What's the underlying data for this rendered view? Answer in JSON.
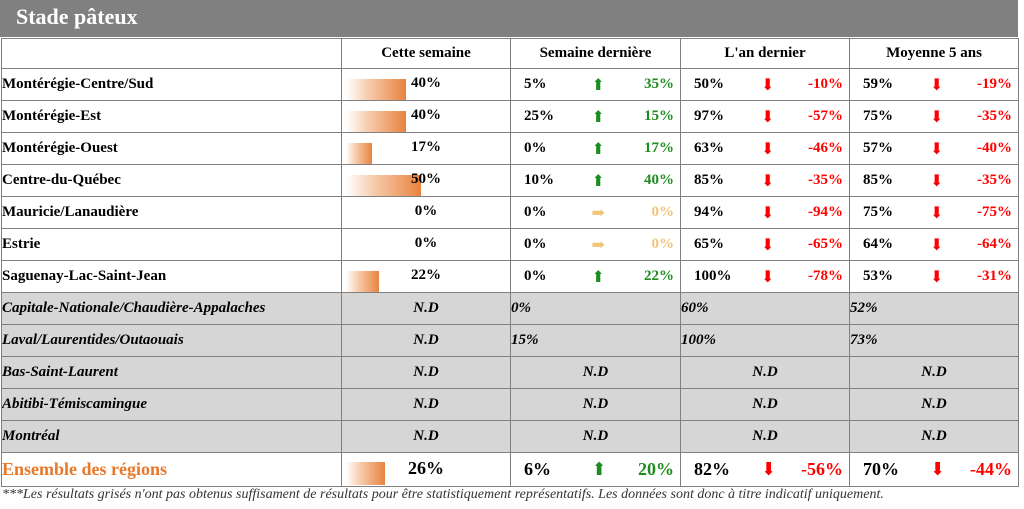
{
  "title": "Stade pâteux",
  "headers": [
    "Cette semaine",
    "Semaine dernière",
    "L'an dernier",
    "Moyenne 5 ans"
  ],
  "colors": {
    "up": "#1e8c1e",
    "down": "#ff0000",
    "flat": "#f2c47a",
    "total": "#e8782a",
    "grey_row": "#d6d6d6"
  },
  "rows": [
    {
      "region": "Montérégie-Centre/Sud",
      "cw": "40%",
      "cw_fill": 0.4,
      "lw": "5%",
      "lw_arrow": "up-arrow",
      "lw_change": "35%",
      "ly": "50%",
      "ly_arrow": "down-arrow",
      "ly_change": "-10%",
      "avg": "59%",
      "avg_arrow": "down-arrow",
      "avg_change": "-19%"
    },
    {
      "region": "Montérégie-Est",
      "cw": "40%",
      "cw_fill": 0.4,
      "lw": "25%",
      "lw_arrow": "up-arrow",
      "lw_change": "15%",
      "ly": "97%",
      "ly_arrow": "down-arrow",
      "ly_change": "-57%",
      "avg": "75%",
      "avg_arrow": "down-arrow",
      "avg_change": "-35%"
    },
    {
      "region": "Montérégie-Ouest",
      "cw": "17%",
      "cw_fill": 0.17,
      "lw": "0%",
      "lw_arrow": "up-arrow",
      "lw_change": "17%",
      "ly": "63%",
      "ly_arrow": "down-arrow",
      "ly_change": "-46%",
      "avg": "57%",
      "avg_arrow": "down-arrow",
      "avg_change": "-40%"
    },
    {
      "region": "Centre-du-Québec",
      "cw": "50%",
      "cw_fill": 0.5,
      "lw": "10%",
      "lw_arrow": "up-arrow",
      "lw_change": "40%",
      "ly": "85%",
      "ly_arrow": "down-arrow",
      "ly_change": "-35%",
      "avg": "85%",
      "avg_arrow": "down-arrow",
      "avg_change": "-35%"
    },
    {
      "region": "Mauricie/Lanaudière",
      "cw": "0%",
      "cw_fill": 0,
      "lw": "0%",
      "lw_arrow": "flat-arrow",
      "lw_change": "0%",
      "ly": "94%",
      "ly_arrow": "down-arrow",
      "ly_change": "-94%",
      "avg": "75%",
      "avg_arrow": "down-arrow",
      "avg_change": "-75%"
    },
    {
      "region": "Estrie",
      "cw": "0%",
      "cw_fill": 0,
      "lw": "0%",
      "lw_arrow": "flat-arrow",
      "lw_change": "0%",
      "ly": "65%",
      "ly_arrow": "down-arrow",
      "ly_change": "-65%",
      "avg": "64%",
      "avg_arrow": "down-arrow",
      "avg_change": "-64%"
    },
    {
      "region": "Saguenay-Lac-Saint-Jean",
      "cw": "22%",
      "cw_fill": 0.22,
      "lw": "0%",
      "lw_arrow": "up-arrow",
      "lw_change": "22%",
      "ly": "100%",
      "ly_arrow": "down-arrow",
      "ly_change": "-78%",
      "avg": "53%",
      "avg_arrow": "down-arrow",
      "avg_change": "-31%"
    }
  ],
  "grey_rows": [
    {
      "region": "Capitale-Nationale/Chaudière-Appalaches",
      "cw": "N.D",
      "lw": "0%",
      "ly": "60%",
      "avg": "52%"
    },
    {
      "region": "Laval/Laurentides/Outaouais",
      "cw": "N.D",
      "lw": "15%",
      "ly": "100%",
      "avg": "73%"
    },
    {
      "region": "Bas-Saint-Laurent",
      "cw": "N.D",
      "lw": "N.D",
      "ly": "N.D",
      "avg": "N.D"
    },
    {
      "region": "Abitibi-Témiscamingue",
      "cw": "N.D",
      "lw": "N.D",
      "ly": "N.D",
      "avg": "N.D"
    },
    {
      "region": "Montréal",
      "cw": "N.D",
      "lw": "N.D",
      "ly": "N.D",
      "avg": "N.D"
    }
  ],
  "total": {
    "region": "Ensemble des régions",
    "cw": "26%",
    "cw_fill": 0.26,
    "lw": "6%",
    "lw_arrow": "up-arrow",
    "lw_change": "20%",
    "ly": "82%",
    "ly_arrow": "down-arrow",
    "ly_change": "-56%",
    "avg": "70%",
    "avg_arrow": "down-arrow",
    "avg_change": "-44%"
  },
  "footnote": "***Les résultats grisés n'ont pas obtenus suffisament de résultats pour être statistiquement représentatifs. Les données sont donc à titre indicatif uniquement."
}
